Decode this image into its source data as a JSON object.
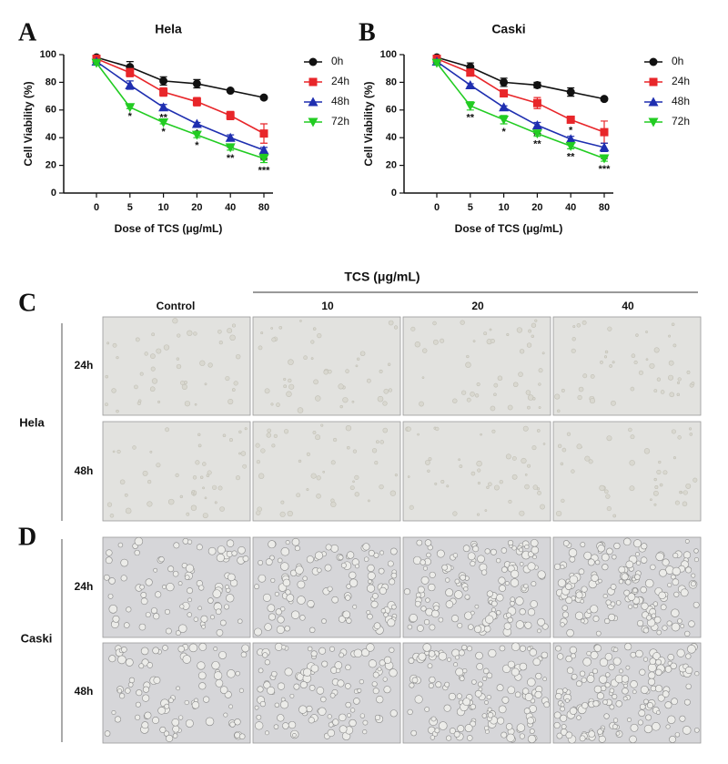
{
  "chart_data": [
    {
      "type": "line",
      "panel_label": "A",
      "title": "Hela",
      "x_label": "Dose of TCS (μg/mL)",
      "y_label": "Cell Viability (%)",
      "categories": [
        "0",
        "5",
        "10",
        "20",
        "40",
        "80"
      ],
      "ylim": [
        0,
        100
      ],
      "yticks": [
        0,
        20,
        40,
        60,
        80,
        100
      ],
      "grid": false,
      "series": [
        {
          "name": "0h",
          "color": "#111111",
          "marker": "circle",
          "values": [
            98,
            91,
            81,
            79,
            74,
            69
          ],
          "errors": [
            1,
            4,
            3,
            3,
            1,
            1
          ],
          "annotations": [
            null,
            null,
            null,
            null,
            null,
            null
          ]
        },
        {
          "name": "24h",
          "color": "#e8262a",
          "marker": "square",
          "values": [
            97,
            87,
            73,
            66,
            56,
            43
          ],
          "errors": [
            1,
            3,
            3,
            3,
            3,
            7
          ],
          "annotations": [
            null,
            null,
            null,
            null,
            null,
            null
          ]
        },
        {
          "name": "48h",
          "color": "#1f2fb0",
          "marker": "triangle-up",
          "values": [
            95,
            78,
            62,
            50,
            40,
            31
          ],
          "errors": [
            1,
            3,
            2,
            1,
            2,
            2
          ],
          "annotations": [
            null,
            null,
            "**",
            "*",
            "**",
            "**"
          ]
        },
        {
          "name": "72h",
          "color": "#22cc22",
          "marker": "triangle-down",
          "values": [
            94,
            62,
            51,
            42,
            33,
            25
          ],
          "errors": [
            1,
            1,
            1,
            2,
            2,
            3
          ],
          "annotations": [
            null,
            "*",
            "*",
            "*",
            "**",
            "***"
          ]
        }
      ]
    },
    {
      "type": "line",
      "panel_label": "B",
      "title": "Caski",
      "x_label": "Dose of TCS (μg/mL)",
      "y_label": "Cell Viability (%)",
      "categories": [
        "0",
        "5",
        "10",
        "20",
        "40",
        "80"
      ],
      "ylim": [
        0,
        100
      ],
      "yticks": [
        0,
        20,
        40,
        60,
        80,
        100
      ],
      "grid": false,
      "series": [
        {
          "name": "0h",
          "color": "#111111",
          "marker": "circle",
          "values": [
            98,
            91,
            80,
            78,
            73,
            68
          ],
          "errors": [
            1,
            3,
            3,
            2,
            3,
            1
          ],
          "annotations": [
            null,
            null,
            null,
            null,
            null,
            null
          ]
        },
        {
          "name": "24h",
          "color": "#e8262a",
          "marker": "square",
          "values": [
            97,
            87,
            72,
            65,
            53,
            44
          ],
          "errors": [
            1,
            2,
            2,
            4,
            2,
            8
          ],
          "annotations": [
            null,
            null,
            null,
            null,
            "*",
            null
          ]
        },
        {
          "name": "48h",
          "color": "#1f2fb0",
          "marker": "triangle-up",
          "values": [
            95,
            78,
            62,
            49,
            39,
            33
          ],
          "errors": [
            1,
            1,
            1,
            2,
            2,
            3
          ],
          "annotations": [
            null,
            null,
            null,
            "**",
            null,
            "**"
          ]
        },
        {
          "name": "72h",
          "color": "#22cc22",
          "marker": "triangle-down",
          "values": [
            94,
            63,
            53,
            43,
            34,
            25
          ],
          "errors": [
            1,
            3,
            3,
            2,
            2,
            2
          ],
          "annotations": [
            null,
            "**",
            "*",
            "**",
            "**",
            "***"
          ]
        }
      ]
    }
  ],
  "micrographs": {
    "header": "TCS (μg/mL)",
    "columns": [
      "Control",
      "10",
      "20",
      "40"
    ],
    "panel_c": {
      "label": "C",
      "group": "Hela",
      "rows": [
        "24h",
        "48h"
      ]
    },
    "panel_d": {
      "label": "D",
      "group": "Caski",
      "rows": [
        "24h",
        "48h"
      ]
    }
  }
}
